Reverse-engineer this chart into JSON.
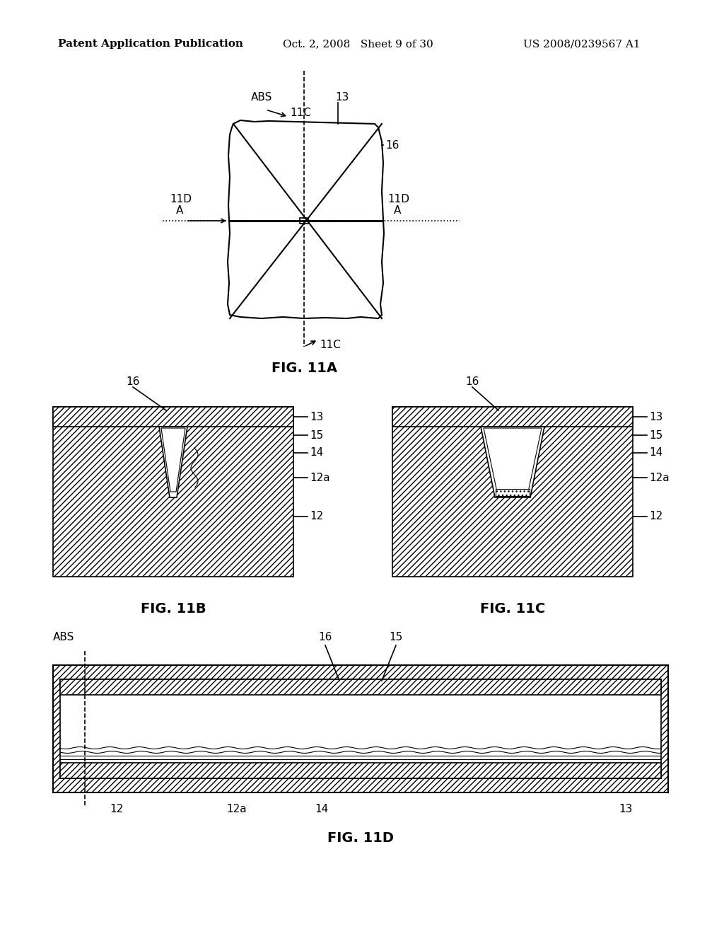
{
  "header_left": "Patent Application Publication",
  "header_mid": "Oct. 2, 2008   Sheet 9 of 30",
  "header_right": "US 2008/0239567 A1",
  "fig_labels": [
    "FIG. 11A",
    "FIG. 11B",
    "FIG. 11C",
    "FIG. 11D"
  ],
  "bg_color": "#ffffff",
  "line_color": "#000000",
  "hatch_color": "#000000",
  "hatch_pattern": "////",
  "header_fontsize": 11,
  "label_fontsize": 14,
  "ref_fontsize": 11
}
